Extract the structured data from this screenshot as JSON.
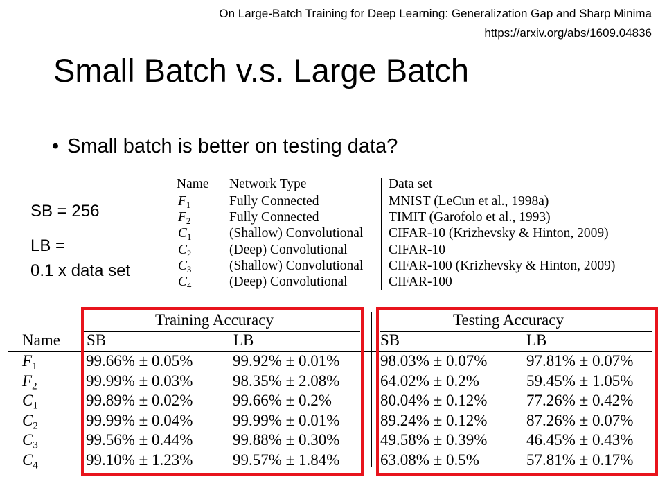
{
  "reference": {
    "paper_title": "On Large-Batch Training for Deep Learning: Generalization Gap and Sharp Minima",
    "url": "https://arxiv.org/abs/1609.04836"
  },
  "slide_title": "Small Batch v.s. Large Batch",
  "bullet": "Small batch is better on testing data?",
  "side_notes": {
    "sb": "SB = 256",
    "lb_line1": "LB =",
    "lb_line2": "0.1 x data set"
  },
  "network_table": {
    "headers": [
      "Name",
      "Network Type",
      "Data set"
    ],
    "rows": [
      {
        "name_letter": "F",
        "name_sub": "1",
        "type": "Fully Connected",
        "dataset": "MNIST (LeCun et al., 1998a)"
      },
      {
        "name_letter": "F",
        "name_sub": "2",
        "type": "Fully Connected",
        "dataset": "TIMIT (Garofolo et al., 1993)"
      },
      {
        "name_letter": "C",
        "name_sub": "1",
        "type": "(Shallow) Convolutional",
        "dataset": "CIFAR-10 (Krizhevsky & Hinton, 2009)"
      },
      {
        "name_letter": "C",
        "name_sub": "2",
        "type": "(Deep) Convolutional",
        "dataset": "CIFAR-10"
      },
      {
        "name_letter": "C",
        "name_sub": "3",
        "type": "(Shallow) Convolutional",
        "dataset": "CIFAR-100 (Krizhevsky & Hinton, 2009)"
      },
      {
        "name_letter": "C",
        "name_sub": "4",
        "type": "(Deep) Convolutional",
        "dataset": "CIFAR-100"
      }
    ]
  },
  "accuracy_table": {
    "group_headers": [
      "Training Accuracy",
      "Testing Accuracy"
    ],
    "name_header": "Name",
    "sub_headers": [
      "SB",
      "LB",
      "SB",
      "LB"
    ],
    "rows": [
      {
        "name_letter": "F",
        "name_sub": "1",
        "train_sb": "99.66% ± 0.05%",
        "train_lb": "99.92% ± 0.01%",
        "test_sb": "98.03% ± 0.07%",
        "test_lb": "97.81% ± 0.07%"
      },
      {
        "name_letter": "F",
        "name_sub": "2",
        "train_sb": "99.99% ± 0.03%",
        "train_lb": "98.35% ± 2.08%",
        "test_sb": "64.02% ± 0.2%",
        "test_lb": "59.45% ± 1.05%"
      },
      {
        "name_letter": "C",
        "name_sub": "1",
        "train_sb": "99.89% ± 0.02%",
        "train_lb": "99.66% ± 0.2%",
        "test_sb": "80.04% ± 0.12%",
        "test_lb": "77.26% ± 0.42%"
      },
      {
        "name_letter": "C",
        "name_sub": "2",
        "train_sb": "99.99% ± 0.04%",
        "train_lb": "99.99% ± 0.01%",
        "test_sb": "89.24% ± 0.12%",
        "test_lb": "87.26% ± 0.07%"
      },
      {
        "name_letter": "C",
        "name_sub": "3",
        "train_sb": "99.56% ± 0.44%",
        "train_lb": "99.88% ± 0.30%",
        "test_sb": "49.58% ± 0.39%",
        "test_lb": "46.45% ± 0.43%"
      },
      {
        "name_letter": "C",
        "name_sub": "4",
        "train_sb": "99.10% ± 1.23%",
        "train_lb": "99.57% ± 1.84%",
        "test_sb": "63.08% ± 0.5%",
        "test_lb": "57.81% ± 0.17%"
      }
    ]
  },
  "highlight_color": "#e8141c"
}
